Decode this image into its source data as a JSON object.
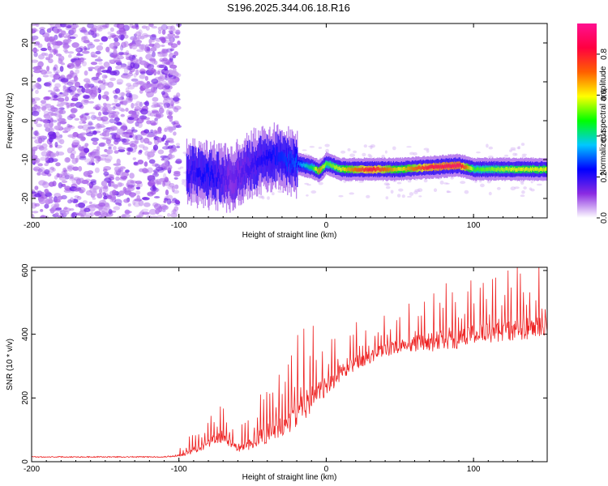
{
  "chart_data": [
    {
      "type": "heatmap",
      "title": "S196.2025.344.06.18.R16",
      "xlabel": "Height of straight line (km)",
      "ylabel": "Frequency (Hz)",
      "xlim": [
        -200,
        150
      ],
      "ylim": [
        -25,
        25
      ],
      "xticks": [
        -200,
        -100,
        0,
        100
      ],
      "yticks": [
        -20,
        -10,
        0,
        10,
        20
      ],
      "colorbar": {
        "label": "Normalized spectral amplitude",
        "range": [
          0.0,
          0.95
        ],
        "ticks": [
          0.0,
          0.2,
          0.4,
          0.6,
          0.8
        ],
        "colors": [
          "#ffffff",
          "#8a2be2",
          "#0000ff",
          "#00c8ff",
          "#00ff00",
          "#ffff00",
          "#ff6000",
          "#ff0040",
          "#ff1090"
        ]
      },
      "noise_region": {
        "x": [
          -200,
          -100
        ],
        "y": [
          -25,
          25
        ],
        "amplitude": 0.05
      },
      "ridge": [
        {
          "x": -95,
          "y": -13,
          "amp": 0.2
        },
        {
          "x": -80,
          "y": -14,
          "amp": 0.25
        },
        {
          "x": -65,
          "y": -15,
          "amp": 0.15
        },
        {
          "x": -50,
          "y": -11,
          "amp": 0.2
        },
        {
          "x": -35,
          "y": -9,
          "amp": 0.25
        },
        {
          "x": -20,
          "y": -11,
          "amp": 0.3
        },
        {
          "x": -10,
          "y": -12,
          "amp": 0.45
        },
        {
          "x": -5,
          "y": -13,
          "amp": 0.7
        },
        {
          "x": 0,
          "y": -11,
          "amp": 0.5
        },
        {
          "x": 10,
          "y": -12.5,
          "amp": 0.6
        },
        {
          "x": 30,
          "y": -12.5,
          "amp": 0.85
        },
        {
          "x": 50,
          "y": -12.5,
          "amp": 0.6
        },
        {
          "x": 70,
          "y": -12,
          "amp": 0.85
        },
        {
          "x": 90,
          "y": -11.5,
          "amp": 0.9
        },
        {
          "x": 100,
          "y": -12.5,
          "amp": 0.5
        },
        {
          "x": 130,
          "y": -12.5,
          "amp": 0.6
        },
        {
          "x": 150,
          "y": -12.5,
          "amp": 0.6
        }
      ]
    },
    {
      "type": "line",
      "xlabel": "Height of straight line (km)",
      "ylabel": "SNR (10 * v/v)",
      "xlim": [
        -200,
        150
      ],
      "ylim": [
        0,
        610
      ],
      "xticks": [
        -200,
        -100,
        0,
        100
      ],
      "yticks": [
        0,
        200,
        400,
        600
      ],
      "series": [
        {
          "name": "SNR",
          "color": "#ee2222",
          "x": [
            -200,
            -110,
            -100,
            -90,
            -80,
            -70,
            -60,
            -50,
            -40,
            -30,
            -20,
            -10,
            0,
            10,
            20,
            30,
            40,
            50,
            60,
            70,
            80,
            90,
            100,
            110,
            120,
            130,
            140,
            150
          ],
          "values": [
            15,
            15,
            20,
            35,
            60,
            80,
            40,
            60,
            90,
            110,
            150,
            200,
            230,
            280,
            310,
            330,
            350,
            360,
            370,
            375,
            380,
            385,
            400,
            405,
            410,
            415,
            420,
            420
          ],
          "spike_amplitude": [
            10,
            10,
            25,
            60,
            90,
            110,
            60,
            120,
            180,
            200,
            250,
            250,
            200,
            150,
            130,
            120,
            120,
            130,
            150,
            170,
            180,
            180,
            180,
            190,
            190,
            200,
            200,
            200
          ]
        }
      ]
    }
  ]
}
